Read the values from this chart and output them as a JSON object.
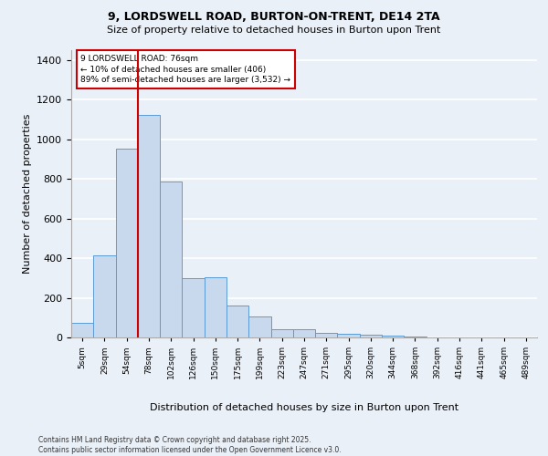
{
  "title1": "9, LORDSWELL ROAD, BURTON-ON-TRENT, DE14 2TA",
  "title2": "Size of property relative to detached houses in Burton upon Trent",
  "xlabel": "Distribution of detached houses by size in Burton upon Trent",
  "ylabel": "Number of detached properties",
  "categories": [
    "5sqm",
    "29sqm",
    "54sqm",
    "78sqm",
    "102sqm",
    "126sqm",
    "150sqm",
    "175sqm",
    "199sqm",
    "223sqm",
    "247sqm",
    "271sqm",
    "295sqm",
    "320sqm",
    "344sqm",
    "368sqm",
    "392sqm",
    "416sqm",
    "441sqm",
    "465sqm",
    "489sqm"
  ],
  "values": [
    75,
    415,
    955,
    1125,
    785,
    300,
    302,
    160,
    108,
    40,
    40,
    22,
    17,
    14,
    10,
    5,
    2,
    0,
    0,
    0,
    0
  ],
  "bar_color": "#c9d9ed",
  "bar_edge_color": "#5b9bd5",
  "vline_color": "#cc0000",
  "annotation_text": "9 LORDSWELL ROAD: 76sqm\n← 10% of detached houses are smaller (406)\n89% of semi-detached houses are larger (3,532) →",
  "annotation_box_color": "#cc0000",
  "ylim": [
    0,
    1450
  ],
  "yticks": [
    0,
    200,
    400,
    600,
    800,
    1000,
    1200,
    1400
  ],
  "footer": "Contains HM Land Registry data © Crown copyright and database right 2025.\nContains public sector information licensed under the Open Government Licence v3.0.",
  "bg_color": "#eaf0f8",
  "plot_bg_color": "#eaf0f8"
}
